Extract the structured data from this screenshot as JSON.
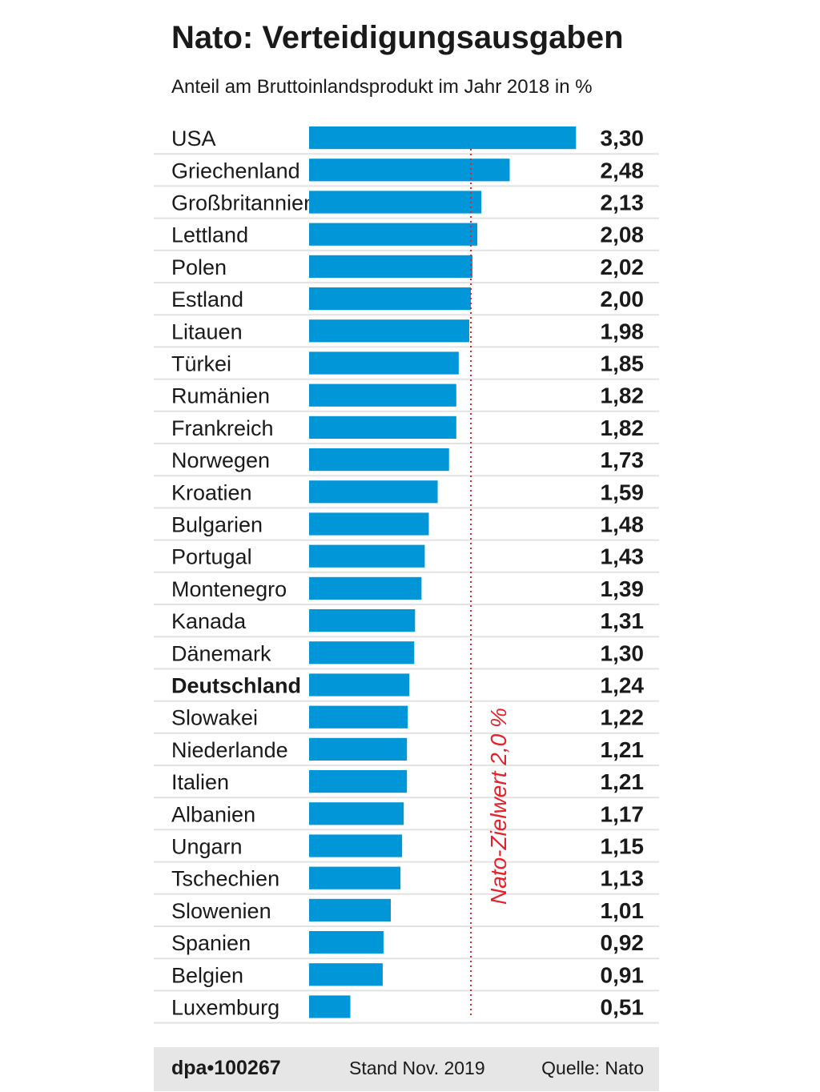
{
  "chart_data": {
    "type": "bar",
    "title": "Nato: Verteidigungsausgaben",
    "subtitle": "Anteil am Bruttoinlandsprodukt im Jahr 2018 in %",
    "categories": [
      "USA",
      "Griechenland",
      "Großbritannien",
      "Lettland",
      "Polen",
      "Estland",
      "Litauen",
      "Türkei",
      "Rumänien",
      "Frankreich",
      "Norwegen",
      "Kroatien",
      "Bulgarien",
      "Portugal",
      "Montenegro",
      "Kanada",
      "Dänemark",
      "Deutschland",
      "Slowakei",
      "Niederlande",
      "Italien",
      "Albanien",
      "Ungarn",
      "Tschechien",
      "Slowenien",
      "Spanien",
      "Belgien",
      "Luxemburg"
    ],
    "values": [
      3.3,
      2.48,
      2.13,
      2.08,
      2.02,
      2.0,
      1.98,
      1.85,
      1.82,
      1.82,
      1.73,
      1.59,
      1.48,
      1.43,
      1.39,
      1.31,
      1.3,
      1.24,
      1.22,
      1.21,
      1.21,
      1.17,
      1.15,
      1.13,
      1.01,
      0.92,
      0.91,
      0.51
    ],
    "value_labels": [
      "3,30",
      "2,48",
      "2,13",
      "2,08",
      "2,02",
      "2,00",
      "1,98",
      "1,85",
      "1,82",
      "1,82",
      "1,73",
      "1,59",
      "1,48",
      "1,43",
      "1,39",
      "1,31",
      "1,30",
      "1,24",
      "1,22",
      "1,21",
      "1,21",
      "1,17",
      "1,15",
      "1,13",
      "1,01",
      "0,92",
      "0,91",
      "0,51"
    ],
    "highlight": "Deutschland",
    "target": {
      "value": 2.0,
      "label": "Nato-Zielwert 2,0 %"
    },
    "bar_color": "#0096d8",
    "target_color": "#e8202a",
    "orientation": "horizontal"
  },
  "footer": {
    "agency": "dpa•100267",
    "date": "Stand Nov. 2019",
    "source": "Quelle: Nato"
  }
}
